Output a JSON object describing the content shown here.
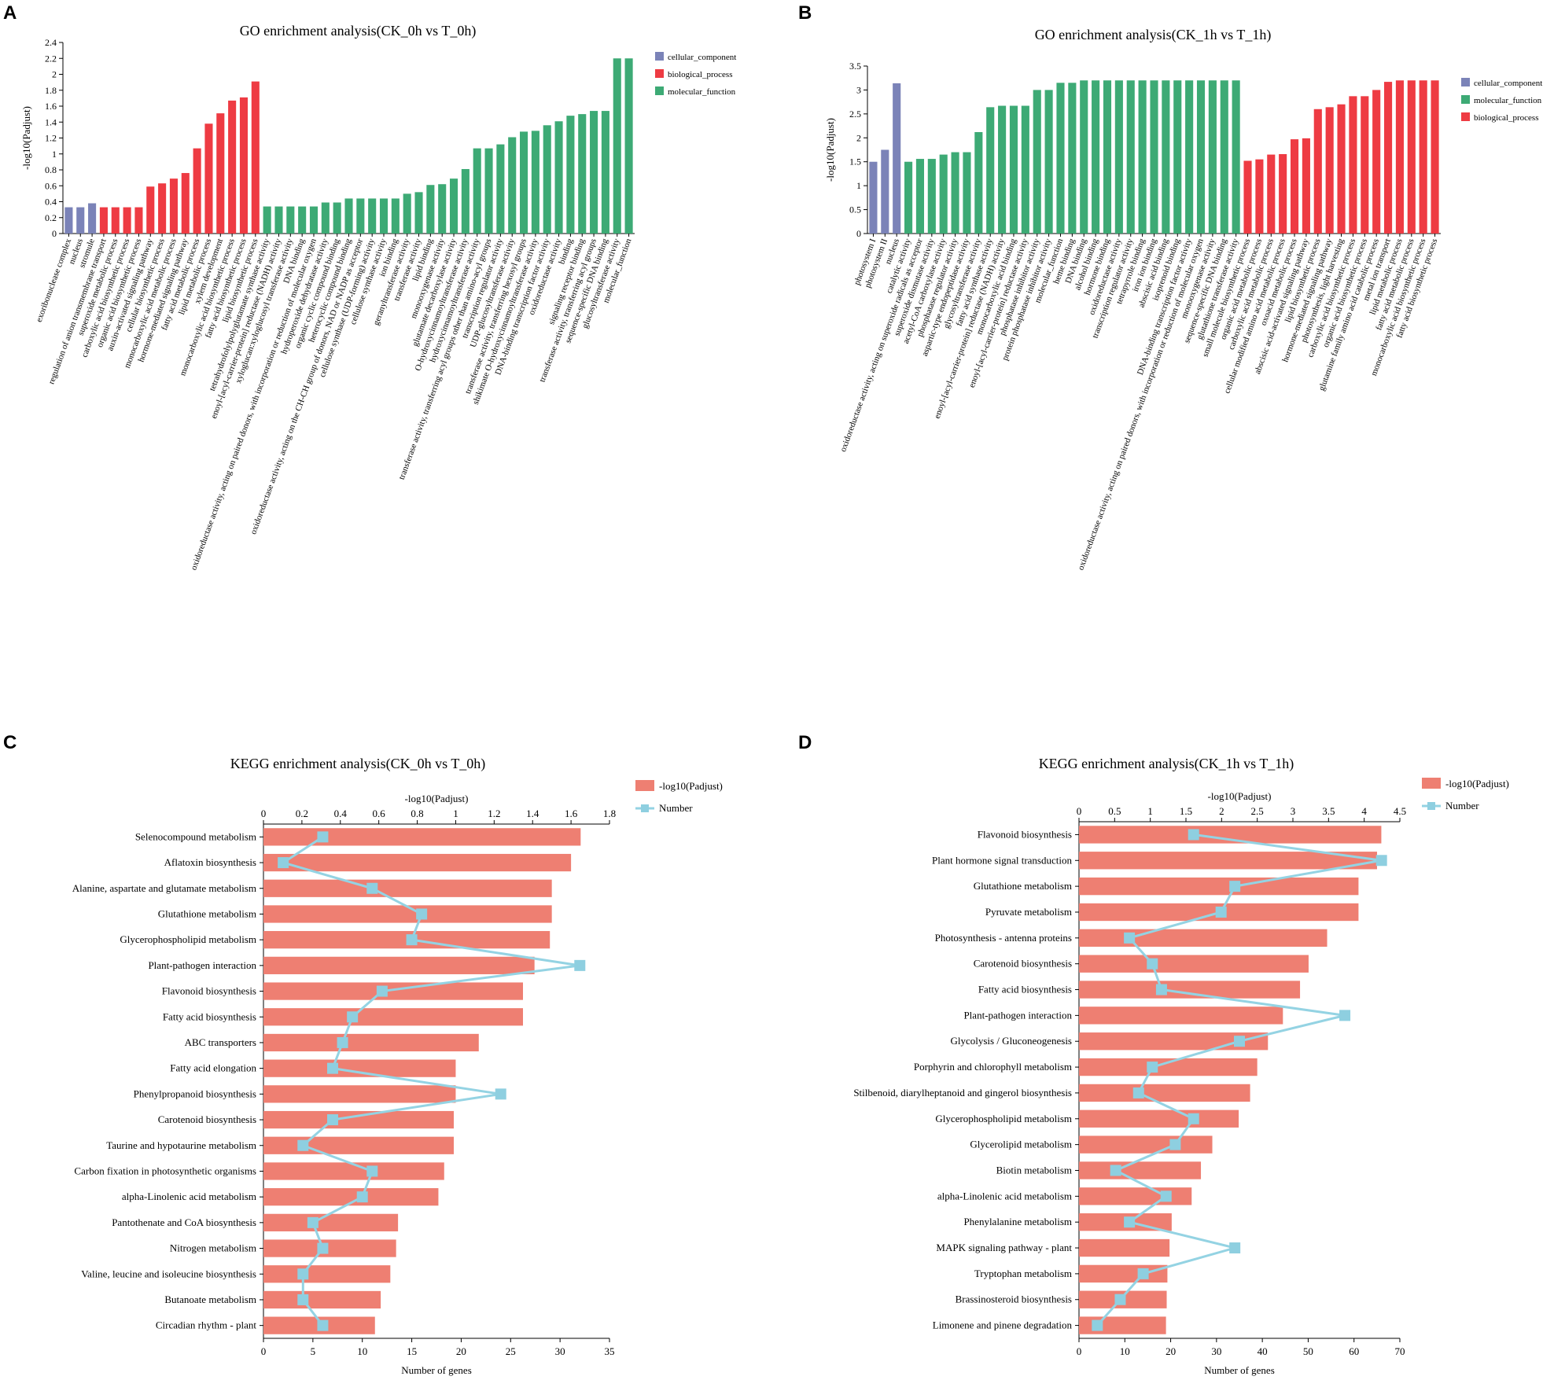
{
  "colors": {
    "cellular_component": "#7b83b8",
    "biological_process": "#ee3b43",
    "molecular_function": "#3daa75",
    "kegg_bar": "#ee7f72",
    "kegg_line": "#94d3e3",
    "kegg_marker": "#8ecfe0"
  },
  "chart_data": [
    {
      "panel": "A",
      "type": "bar",
      "title": "GO enrichment analysis(CK_0h vs T_0h)",
      "ylabel": "-log10(Padjust)",
      "ylim": [
        0,
        2.4
      ],
      "yticks": [
        "0",
        "0.2",
        "0.4",
        "0.6",
        "0.8",
        "1",
        "1.2",
        "1.4",
        "1.6",
        "1.8",
        "2",
        "2.2",
        "2.4"
      ],
      "legend": [
        "cellular_component",
        "biological_process",
        "molecular_function"
      ],
      "categories": [
        "exoribonuclease complex",
        "nucleus",
        "stromule",
        "regulation of anion transmembrane transport",
        "superoxide metabolic process",
        "carboxylic acid biosynthetic process",
        "organic acid biosynthetic process",
        "auxin-activated signaling pathway",
        "cellular biosynthetic process",
        "monocarboxylic acid metabolic process",
        "hormone-mediated signaling pathway",
        "fatty acid metabolic process",
        "lipid metabolic process",
        "xylem development",
        "monocarboxylic acid biosynthetic process",
        "fatty acid biosynthetic process",
        "lipid biosynthetic process",
        "tetrahydrofolylpolyglutamate synthase activity",
        "enoyl-[acyl-carrier-protein] reductase (NADH) activity",
        "xyloglucan:xyloglucosyl transferase activity",
        "DNA binding",
        "oxidoreductase activity, acting on paired donors, with incorporation or reduction of molecular oxygen",
        "hydroperoxide dehydratase activity",
        "organic cyclic compound binding",
        "heterocyclic compound binding",
        "oxidoreductase activity, acting on the CH-CH group of donors, NAD or NADP as acceptor",
        "cellulose synthase (UDP-forming) activity",
        "cellulose synthase activity",
        "ion binding",
        "geranyltransferase activity",
        "transferase activity",
        "lipid binding",
        "monooxygenase activity",
        "glutamate decarboxylase activity",
        "O-hydroxycinnamoyltransferase activity",
        "hydroxycinnamoyltransferase activity",
        "transferase activity, transferring acyl groups other than amino-acyl groups",
        "transcription regulator activity",
        "UDP-glucosyltransferase activity",
        "transferase activity, transferring hexosyl groups",
        "shikimate O-hydroxycinnamoyltransferase activity",
        "DNA-binding transcription factor activity",
        "oxidoreductase activity",
        "binding",
        "signaling receptor binding",
        "transferase activity, transferring acyl groups",
        "sequence-specific DNA binding",
        "glucosyltransferase activity",
        "molecular_function"
      ],
      "groups": [
        "cellular_component",
        "cellular_component",
        "cellular_component",
        "biological_process",
        "biological_process",
        "biological_process",
        "biological_process",
        "biological_process",
        "biological_process",
        "biological_process",
        "biological_process",
        "biological_process",
        "biological_process",
        "biological_process",
        "biological_process",
        "biological_process",
        "biological_process",
        "molecular_function",
        "molecular_function",
        "molecular_function",
        "molecular_function",
        "molecular_function",
        "molecular_function",
        "molecular_function",
        "molecular_function",
        "molecular_function",
        "molecular_function",
        "molecular_function",
        "molecular_function",
        "molecular_function",
        "molecular_function",
        "molecular_function",
        "molecular_function",
        "molecular_function",
        "molecular_function",
        "molecular_function",
        "molecular_function",
        "molecular_function",
        "molecular_function",
        "molecular_function",
        "molecular_function",
        "molecular_function",
        "molecular_function",
        "molecular_function",
        "molecular_function",
        "molecular_function",
        "molecular_function",
        "molecular_function",
        "molecular_function"
      ],
      "values": [
        0.33,
        0.33,
        0.38,
        0.33,
        0.33,
        0.33,
        0.33,
        0.59,
        0.63,
        0.69,
        0.76,
        1.07,
        1.38,
        1.51,
        1.67,
        1.71,
        1.91,
        0.34,
        0.34,
        0.34,
        0.34,
        0.34,
        0.39,
        0.39,
        0.44,
        0.44,
        0.44,
        0.44,
        0.44,
        0.5,
        0.52,
        0.61,
        0.62,
        0.69,
        0.81,
        1.07,
        1.07,
        1.12,
        1.21,
        1.28,
        1.29,
        1.36,
        1.41,
        1.48,
        1.5,
        1.54,
        1.54,
        2.2,
        2.2
      ]
    },
    {
      "panel": "B",
      "type": "bar",
      "title": "GO enrichment analysis(CK_1h vs T_1h)",
      "ylabel": "-log10(Padjust)",
      "ylim": [
        0,
        3.5
      ],
      "yticks": [
        "0",
        "0.5",
        "1",
        "1.5",
        "2",
        "2.5",
        "3",
        "3.5"
      ],
      "legend": [
        "cellular_component",
        "molecular_function",
        "biological_process"
      ],
      "categories": [
        "photosystem I",
        "photosystem II",
        "nucleus",
        "catalytic activity",
        "oxidoreductase activity, acting on superoxide radicals as acceptor",
        "superoxide dismutase activity",
        "acetyl-CoA carboxylase activity",
        "phosphatase regulator activity",
        "aspartic-type endopeptidase activity",
        "glycosyltransferase activity",
        "fatty acid synthase activity",
        "enoyl-[acyl-carrier-protein] reductase (NADH) activity",
        "monocarboxylic acid binding",
        "enoyl-[acyl-carrier-protein] reductase activity",
        "phosphatase inhibitor activity",
        "protein phosphatase inhibitor activity",
        "molecular_function",
        "heme binding",
        "DNA binding",
        "alcohol binding",
        "hormone binding",
        "oxidoreductase activity",
        "transcription regulator activity",
        "tetrapyrrole binding",
        "iron ion binding",
        "abscisic acid binding",
        "isoprenoid binding",
        "DNA-binding transcription factor activity",
        "oxidoreductase activity, acting on paired donors, with incorporation or reduction of molecular oxygen",
        "monooxygenase activity",
        "sequence-specific DNA binding",
        "glutathione transferase activity",
        "small molecule biosynthetic process",
        "organic acid metabolic process",
        "carboxylic acid metabolic process",
        "cellular modified amino acid metabolic process",
        "oxoacid metabolic process",
        "abscisic acid-activated signaling pathway",
        "lipid biosynthetic process",
        "hormone-mediated signaling pathway",
        "photosynthesis, light harvesting",
        "carboxylic acid biosynthetic process",
        "organic acid biosynthetic process",
        "glutamine family amino acid catabolic process",
        "metal ion transport",
        "lipid metabolic process",
        "fatty acid metabolic process",
        "monocarboxylic acid biosynthetic process",
        "fatty acid biosynthetic process"
      ],
      "groups": [
        "cellular_component",
        "cellular_component",
        "cellular_component",
        "molecular_function",
        "molecular_function",
        "molecular_function",
        "molecular_function",
        "molecular_function",
        "molecular_function",
        "molecular_function",
        "molecular_function",
        "molecular_function",
        "molecular_function",
        "molecular_function",
        "molecular_function",
        "molecular_function",
        "molecular_function",
        "molecular_function",
        "molecular_function",
        "molecular_function",
        "molecular_function",
        "molecular_function",
        "molecular_function",
        "molecular_function",
        "molecular_function",
        "molecular_function",
        "molecular_function",
        "molecular_function",
        "molecular_function",
        "molecular_function",
        "molecular_function",
        "molecular_function",
        "biological_process",
        "biological_process",
        "biological_process",
        "biological_process",
        "biological_process",
        "biological_process",
        "biological_process",
        "biological_process",
        "biological_process",
        "biological_process",
        "biological_process",
        "biological_process",
        "biological_process",
        "biological_process",
        "biological_process",
        "biological_process",
        "biological_process"
      ],
      "values": [
        1.5,
        1.75,
        3.14,
        1.5,
        1.56,
        1.56,
        1.65,
        1.7,
        1.7,
        2.12,
        2.64,
        2.67,
        2.67,
        2.67,
        3.0,
        3.0,
        3.15,
        3.15,
        3.2,
        3.2,
        3.2,
        3.2,
        3.2,
        3.2,
        3.2,
        3.2,
        3.2,
        3.2,
        3.2,
        3.2,
        3.2,
        3.2,
        1.52,
        1.55,
        1.65,
        1.66,
        1.97,
        1.99,
        2.6,
        2.64,
        2.7,
        2.87,
        2.87,
        3.0,
        3.17,
        3.2,
        3.2,
        3.2,
        3.2
      ]
    },
    {
      "panel": "C",
      "type": "bar+line",
      "title": "KEGG enrichment analysis(CK_0h vs T_0h)",
      "top_axis_label": "-log10(Padjust)",
      "bottom_axis_label": "Number of genes",
      "top_lim": [
        0,
        1.8
      ],
      "top_ticks": [
        "0",
        "0.2",
        "0.4",
        "0.6",
        "0.8",
        "1",
        "1.2",
        "1.4",
        "1.6",
        "1.8"
      ],
      "bottom_lim": [
        0,
        35
      ],
      "bottom_ticks": [
        "0",
        "5",
        "10",
        "15",
        "20",
        "25",
        "30",
        "35"
      ],
      "legend": [
        "-log10(Padjust)",
        "Number"
      ],
      "categories": [
        "Selenocompound metabolism",
        "Aflatoxin biosynthesis",
        "Alanine, aspartate and glutamate metabolism",
        "Glutathione metabolism",
        "Glycerophospholipid metabolism",
        "Plant-pathogen interaction",
        "Flavonoid biosynthesis",
        "Fatty acid biosynthesis",
        "ABC transporters",
        "Fatty acid elongation",
        "Phenylpropanoid biosynthesis",
        "Carotenoid biosynthesis",
        "Taurine and hypotaurine metabolism",
        "Carbon fixation in photosynthetic organisms",
        "alpha-Linolenic acid metabolism",
        "Pantothenate and CoA biosynthesis",
        "Nitrogen metabolism",
        "Valine, leucine and isoleucine biosynthesis",
        "Butanoate metabolism",
        "Circadian rhythm - plant"
      ],
      "series": [
        {
          "name": "-log10(Padjust)",
          "values": [
            1.65,
            1.6,
            1.5,
            1.5,
            1.49,
            1.41,
            1.35,
            1.35,
            1.12,
            1.0,
            1.0,
            0.99,
            0.99,
            0.94,
            0.91,
            0.7,
            0.69,
            0.66,
            0.61,
            0.58
          ]
        },
        {
          "name": "Number",
          "values": [
            6,
            2,
            11,
            16,
            15,
            32,
            12,
            9,
            8,
            7,
            24,
            7,
            4,
            11,
            10,
            5,
            6,
            4,
            4,
            6
          ]
        }
      ]
    },
    {
      "panel": "D",
      "type": "bar+line",
      "title": "KEGG enrichment analysis(CK_1h vs T_1h)",
      "top_axis_label": "-log10(Padjust)",
      "bottom_axis_label": "Number of genes",
      "top_lim": [
        0,
        4.5
      ],
      "top_ticks": [
        "0",
        "0.5",
        "1",
        "1.5",
        "2",
        "2.5",
        "3",
        "3.5",
        "4",
        "4.5"
      ],
      "bottom_lim": [
        0,
        70
      ],
      "bottom_ticks": [
        "0",
        "10",
        "20",
        "30",
        "40",
        "50",
        "60",
        "70"
      ],
      "legend": [
        "-log10(Padjust)",
        "Number"
      ],
      "categories": [
        "Flavonoid biosynthesis",
        "Plant hormone signal transduction",
        "Glutathione metabolism",
        "Pyruvate metabolism",
        "Photosynthesis - antenna proteins",
        "Carotenoid biosynthesis",
        "Fatty acid biosynthesis",
        "Plant-pathogen interaction",
        "Glycolysis / Gluconeogenesis",
        "Porphyrin and chlorophyll metabolism",
        "Stilbenoid, diarylheptanoid and gingerol biosynthesis",
        "Glycerophospholipid metabolism",
        "Glycerolipid metabolism",
        "Biotin metabolism",
        "alpha-Linolenic acid metabolism",
        "Phenylalanine metabolism",
        "MAPK signaling pathway - plant",
        "Tryptophan metabolism",
        "Brassinosteroid biosynthesis",
        "Limonene and pinene degradation"
      ],
      "series": [
        {
          "name": "-log10(Padjust)",
          "values": [
            4.24,
            4.18,
            3.92,
            3.92,
            3.48,
            3.22,
            3.1,
            2.86,
            2.65,
            2.5,
            2.4,
            2.24,
            1.87,
            1.71,
            1.58,
            1.3,
            1.27,
            1.24,
            1.23,
            1.22
          ]
        },
        {
          "name": "Number",
          "values": [
            25,
            66,
            34,
            31,
            11,
            16,
            18,
            58,
            35,
            16,
            13,
            25,
            21,
            8,
            19,
            11,
            34,
            14,
            9,
            4
          ]
        }
      ]
    }
  ],
  "panel_labels": [
    "A",
    "B",
    "C",
    "D"
  ]
}
